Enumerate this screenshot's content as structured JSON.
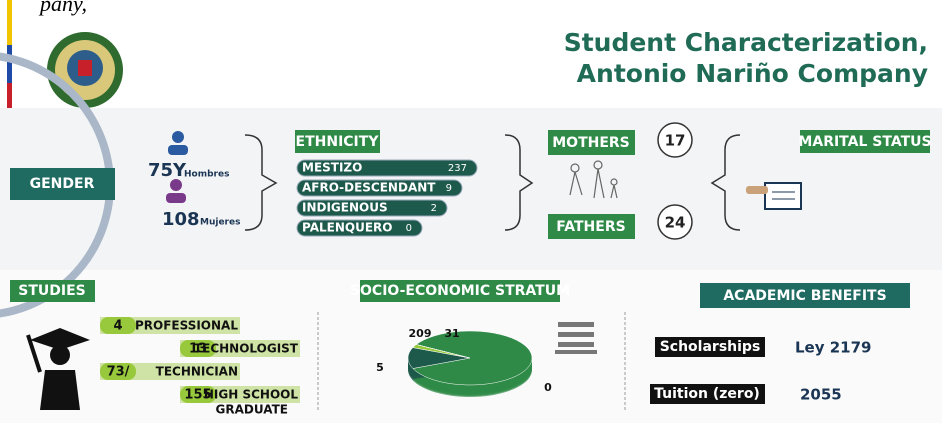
{
  "header": {
    "fragment": "pany,",
    "title_line1": "Student Characterization,",
    "title_line2": "Antonio Nariño Company"
  },
  "gender": {
    "label": "GENDER",
    "men_value": "75Y",
    "men_label": "Hombres",
    "women_value": "108",
    "women_label": "Mujeres"
  },
  "ethnicity": {
    "label": "ETHNICITY",
    "rows": [
      {
        "name": "MESTIZO",
        "value": 237
      },
      {
        "name": "AFRO-DESCENDANT",
        "value": 9
      },
      {
        "name": "INDIGENOUS",
        "value": 2
      },
      {
        "name": "PALENQUERO",
        "value": 0
      }
    ]
  },
  "parents": {
    "mothers_label": "MOTHERS",
    "mothers_value": 17,
    "fathers_label": "FATHERS",
    "fathers_value": 24
  },
  "marital_status": {
    "label": "MARITAL STATUS"
  },
  "studies": {
    "label": "STUDIES",
    "rows": [
      {
        "value": "4",
        "name": "PROFESSIONAL"
      },
      {
        "value": "13",
        "name": "TECHNOLOGIST"
      },
      {
        "value": "73/",
        "name": "TECHNICIAN"
      },
      {
        "value": "155",
        "name": "HIGH SCHOOL",
        "name2": "GRADUATE"
      }
    ]
  },
  "stratum": {
    "label": "SOCIO-ECONOMIC STRATUM",
    "type": "pie",
    "values": [
      209,
      31,
      5,
      0
    ],
    "colors": [
      "#2f8a47",
      "#1d5a4b",
      "#98c93c",
      "#cfe27a"
    ]
  },
  "benefits": {
    "label": "ACADEMIC BENEFITS",
    "rows": [
      {
        "name": "Scholarships",
        "value": "Ley 2179"
      },
      {
        "name": "Tuition (zero)",
        "value": "2055"
      }
    ]
  }
}
